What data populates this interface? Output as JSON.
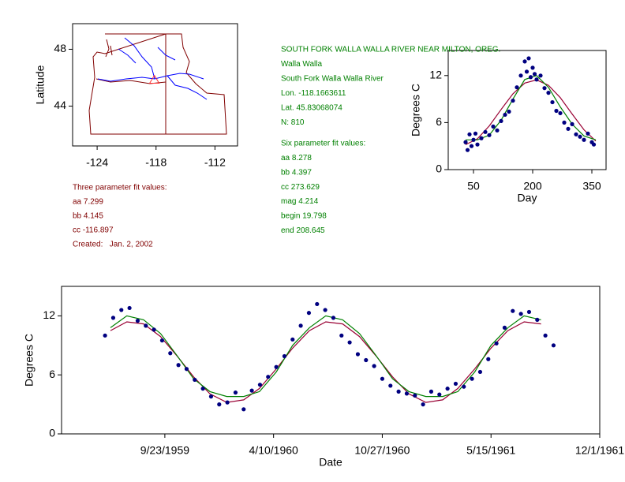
{
  "chart_data": [
    {
      "type": "map",
      "y_label": "Latitude",
      "xlim": [
        -126.5,
        -109.7
      ],
      "xticks": [
        -124,
        -118,
        -112
      ],
      "ylim": [
        41.2,
        49.8
      ],
      "yticks": [
        44,
        48
      ],
      "points": {
        "x": [
          -118.17
        ],
        "y": [
          45.83
        ],
        "color": "#ff3333",
        "marker": "triangle"
      }
    },
    {
      "type": "scatter",
      "y_label": "Degrees C",
      "x_label": "Day",
      "xlim": [
        -14,
        386
      ],
      "xticks": [
        50,
        200,
        350
      ],
      "ylim": [
        0,
        15.2
      ],
      "yticks": [
        0,
        6,
        12
      ],
      "points": {
        "color": "#000080",
        "x": [
          30,
          35,
          40,
          45,
          50,
          55,
          60,
          70,
          80,
          90,
          100,
          110,
          120,
          130,
          140,
          150,
          160,
          170,
          180,
          185,
          190,
          195,
          200,
          205,
          210,
          220,
          230,
          240,
          250,
          260,
          270,
          280,
          290,
          300,
          310,
          320,
          330,
          340,
          350,
          355
        ],
        "y": [
          3.5,
          2.5,
          4.5,
          3.0,
          3.8,
          4.6,
          3.2,
          4.0,
          4.8,
          4.4,
          5.5,
          5.0,
          6.2,
          7.0,
          7.4,
          8.8,
          10.5,
          12.0,
          13.8,
          12.5,
          14.2,
          11.8,
          13.0,
          12.2,
          11.5,
          12.0,
          10.4,
          9.8,
          8.6,
          7.5,
          7.2,
          6.0,
          5.2,
          5.8,
          4.5,
          4.2,
          3.8,
          4.6,
          3.5,
          3.2
        ]
      },
      "fits": [
        {
          "color": "#990033",
          "x": [
            30,
            60,
            90,
            120,
            150,
            180,
            210,
            240,
            270,
            300,
            330,
            360
          ],
          "y": [
            3.18,
            3.94,
            5.58,
            7.67,
            9.67,
            11.04,
            11.45,
            10.76,
            9.18,
            7.1,
            5.08,
            3.64
          ]
        },
        {
          "color": "#008000",
          "x": [
            30,
            60,
            90,
            120,
            150,
            180,
            210,
            240,
            270,
            300,
            330,
            360
          ],
          "y": [
            3.8,
            3.8,
            4.4,
            6.3,
            9.0,
            11.5,
            12.0,
            10.5,
            8.0,
            5.8,
            4.3,
            3.8
          ]
        }
      ]
    },
    {
      "type": "scatter",
      "y_label": "Degrees C",
      "x_label": "Date",
      "xlim": [
        "1959-03-17",
        "1961-12-01"
      ],
      "xticks": [
        {
          "value": "1959-09-23",
          "label": "9/23/1959"
        },
        {
          "value": "1960-04-10",
          "label": "4/10/1960"
        },
        {
          "value": "1960-10-27",
          "label": "10/27/1960"
        },
        {
          "value": "1961-05-15",
          "label": "5/15/1961"
        },
        {
          "value": "1961-12-01",
          "label": "12/1/1961"
        }
      ],
      "ylim": [
        0,
        15
      ],
      "yticks": [
        0,
        6,
        12
      ],
      "points": {
        "color": "#000080",
        "x": [
          "1959-06-05",
          "1959-06-20",
          "1959-07-05",
          "1959-07-20",
          "1959-08-04",
          "1959-08-19",
          "1959-09-03",
          "1959-09-18",
          "1959-10-03",
          "1959-10-18",
          "1959-11-02",
          "1959-11-17",
          "1959-12-02",
          "1959-12-17",
          "1960-01-01",
          "1960-01-16",
          "1960-01-31",
          "1960-02-15",
          "1960-03-01",
          "1960-03-16",
          "1960-03-31",
          "1960-04-15",
          "1960-04-30",
          "1960-05-15",
          "1960-05-30",
          "1960-06-14",
          "1960-06-29",
          "1960-07-14",
          "1960-07-29",
          "1960-08-13",
          "1960-08-28",
          "1960-09-12",
          "1960-09-27",
          "1960-10-12",
          "1960-10-27",
          "1960-11-11",
          "1960-11-26",
          "1960-12-11",
          "1960-12-26",
          "1961-01-10",
          "1961-01-25",
          "1961-02-09",
          "1961-02-24",
          "1961-03-11",
          "1961-03-26",
          "1961-04-10",
          "1961-04-25",
          "1961-05-10",
          "1961-05-25",
          "1961-06-09",
          "1961-06-24",
          "1961-07-09",
          "1961-07-24",
          "1961-08-08",
          "1961-08-23",
          "1961-09-07"
        ],
        "y": [
          10.0,
          11.8,
          12.6,
          12.8,
          11.5,
          11.0,
          10.6,
          9.5,
          8.2,
          7.0,
          6.6,
          5.5,
          4.6,
          3.8,
          3.0,
          3.2,
          4.2,
          2.5,
          4.4,
          5.0,
          5.8,
          6.8,
          7.9,
          9.6,
          11.0,
          12.3,
          13.2,
          12.6,
          11.8,
          10.0,
          9.3,
          8.1,
          7.5,
          6.9,
          5.6,
          4.9,
          4.3,
          4.1,
          3.9,
          3.0,
          4.3,
          4.0,
          4.6,
          5.1,
          4.8,
          5.6,
          6.3,
          7.6,
          9.2,
          10.8,
          12.5,
          12.2,
          12.4,
          11.6,
          10.0,
          9.0
        ]
      },
      "fits": [
        {
          "color": "#990033",
          "x": [
            "1959-06-15",
            "1959-07-15",
            "1959-08-15",
            "1959-09-15",
            "1959-10-15",
            "1959-11-15",
            "1959-12-15",
            "1960-01-15",
            "1960-02-15",
            "1960-03-15",
            "1960-04-15",
            "1960-05-15",
            "1960-06-15",
            "1960-07-15",
            "1960-08-15",
            "1960-09-15",
            "1960-10-15",
            "1960-11-15",
            "1960-12-15",
            "1961-01-15",
            "1961-02-15",
            "1961-03-15",
            "1961-04-15",
            "1961-05-15",
            "1961-06-15",
            "1961-07-15",
            "1961-08-15"
          ],
          "y": [
            10.5,
            11.39,
            11.18,
            9.9,
            7.96,
            5.79,
            4.07,
            3.2,
            3.46,
            4.62,
            6.61,
            8.72,
            10.5,
            11.39,
            11.18,
            9.9,
            7.96,
            5.79,
            4.07,
            3.2,
            3.46,
            4.62,
            6.61,
            8.72,
            10.5,
            11.39,
            11.18
          ]
        },
        {
          "color": "#008000",
          "x": [
            "1959-06-15",
            "1959-07-15",
            "1959-08-15",
            "1959-09-15",
            "1959-10-15",
            "1959-11-15",
            "1959-12-15",
            "1960-01-15",
            "1960-02-15",
            "1960-03-15",
            "1960-04-15",
            "1960-05-15",
            "1960-06-15",
            "1960-07-15",
            "1960-08-15",
            "1960-09-15",
            "1960-10-15",
            "1960-11-15",
            "1960-12-15",
            "1961-01-15",
            "1961-02-15",
            "1961-03-15",
            "1961-04-15",
            "1961-05-15",
            "1961-06-15",
            "1961-07-15",
            "1961-08-15"
          ],
          "y": [
            10.8,
            12.0,
            11.6,
            10.2,
            8.0,
            5.6,
            4.3,
            3.8,
            3.8,
            4.3,
            6.3,
            9.0,
            10.8,
            12.0,
            11.6,
            10.2,
            8.0,
            5.6,
            4.3,
            3.8,
            3.8,
            4.3,
            6.3,
            9.0,
            10.8,
            12.0,
            11.6
          ]
        }
      ]
    }
  ],
  "three_param_notes": [
    "Three parameter fit values:",
    "aa 7.299",
    "bb 4.145",
    "cc -116.897",
    "Created:   Jan. 2, 2002"
  ],
  "station_notes": [
    "SOUTH FORK WALLA WALLA RIVER NEAR MILTON, OREG.",
    "Walla Walla",
    "South Fork Walla Walla River",
    "Lon. -118.1663611",
    "Lat. 45.83068074",
    "N: 810"
  ],
  "six_param_notes": [
    "Six parameter fit values:",
    "aa 8.278",
    "bb 4.397",
    "cc 273.629",
    "mag 4.214",
    "begin 19.798",
    "end 208.645"
  ]
}
